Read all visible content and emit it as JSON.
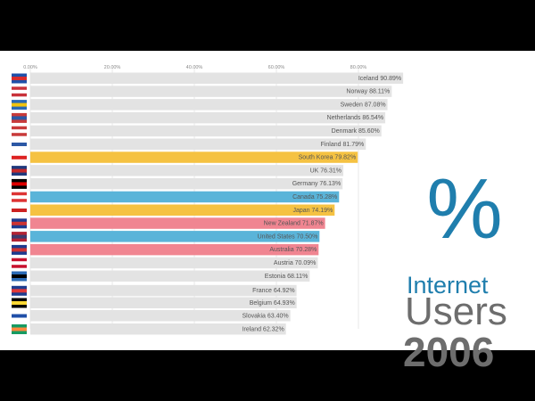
{
  "chart_data": {
    "type": "bar",
    "orientation": "horizontal",
    "xlim": [
      0,
      100
    ],
    "ticks": [
      "0.00%",
      "20.00%",
      "40.00%",
      "60.00%",
      "80.00%"
    ],
    "tick_values": [
      0,
      20,
      40,
      60,
      80
    ],
    "grid": true,
    "title_lines": [
      "%",
      "Internet",
      "Users",
      "2006"
    ],
    "bars": [
      {
        "label": "Iceland",
        "value": 90.89,
        "value_text": "90.89%",
        "color": "#e3e3e3",
        "flag": "iceland-flag"
      },
      {
        "label": "Norway",
        "value": 88.11,
        "value_text": "88.11%",
        "color": "#e3e3e3",
        "flag": "norway-flag"
      },
      {
        "label": "Sweden",
        "value": 87.08,
        "value_text": "87.08%",
        "color": "#e3e3e3",
        "flag": "sweden-flag"
      },
      {
        "label": "Netherlands",
        "value": 86.54,
        "value_text": "86.54%",
        "color": "#e3e3e3",
        "flag": "netherlands-flag"
      },
      {
        "label": "Denmark",
        "value": 85.6,
        "value_text": "85.60%",
        "color": "#e3e3e3",
        "flag": "denmark-flag"
      },
      {
        "label": "Finland",
        "value": 81.79,
        "value_text": "81.79%",
        "color": "#e3e3e3",
        "flag": "finland-flag"
      },
      {
        "label": "South Korea",
        "value": 79.82,
        "value_text": "79.82%",
        "color": "#f5c242",
        "flag": "south-korea-flag"
      },
      {
        "label": "UK",
        "value": 76.31,
        "value_text": "76.31%",
        "color": "#e3e3e3",
        "flag": "uk-flag"
      },
      {
        "label": "Germany",
        "value": 76.13,
        "value_text": "76.13%",
        "color": "#e3e3e3",
        "flag": "germany-flag"
      },
      {
        "label": "Canada",
        "value": 75.28,
        "value_text": "75.28%",
        "color": "#5ab4d9",
        "flag": "canada-flag"
      },
      {
        "label": "Japan",
        "value": 74.19,
        "value_text": "74.19%",
        "color": "#f5c242",
        "flag": "japan-flag"
      },
      {
        "label": "New Zealand",
        "value": 71.87,
        "value_text": "71.87%",
        "color": "#f08591",
        "flag": "new-zealand-flag"
      },
      {
        "label": "United States",
        "value": 70.5,
        "value_text": "70.50%",
        "color": "#5ab4d9",
        "flag": "usa-flag"
      },
      {
        "label": "Australia",
        "value": 70.28,
        "value_text": "70.28%",
        "color": "#f08591",
        "flag": "australia-flag"
      },
      {
        "label": "Austria",
        "value": 70.09,
        "value_text": "70.09%",
        "color": "#e3e3e3",
        "flag": "austria-flag"
      },
      {
        "label": "Estonia",
        "value": 68.11,
        "value_text": "68.11%",
        "color": "#e3e3e3",
        "flag": "estonia-flag"
      },
      {
        "label": "France",
        "value": 64.92,
        "value_text": "64.92%",
        "color": "#e3e3e3",
        "flag": "france-flag"
      },
      {
        "label": "Belgium",
        "value": 64.93,
        "value_text": "64.93%",
        "color": "#e3e3e3",
        "flag": "belgium-flag"
      },
      {
        "label": "Slovakia",
        "value": 63.4,
        "value_text": "63.40%",
        "color": "#e3e3e3",
        "flag": "slovakia-flag"
      },
      {
        "label": "Ireland",
        "value": 62.32,
        "value_text": "62.32%",
        "color": "#e3e3e3",
        "flag": "ireland-flag"
      }
    ]
  }
}
